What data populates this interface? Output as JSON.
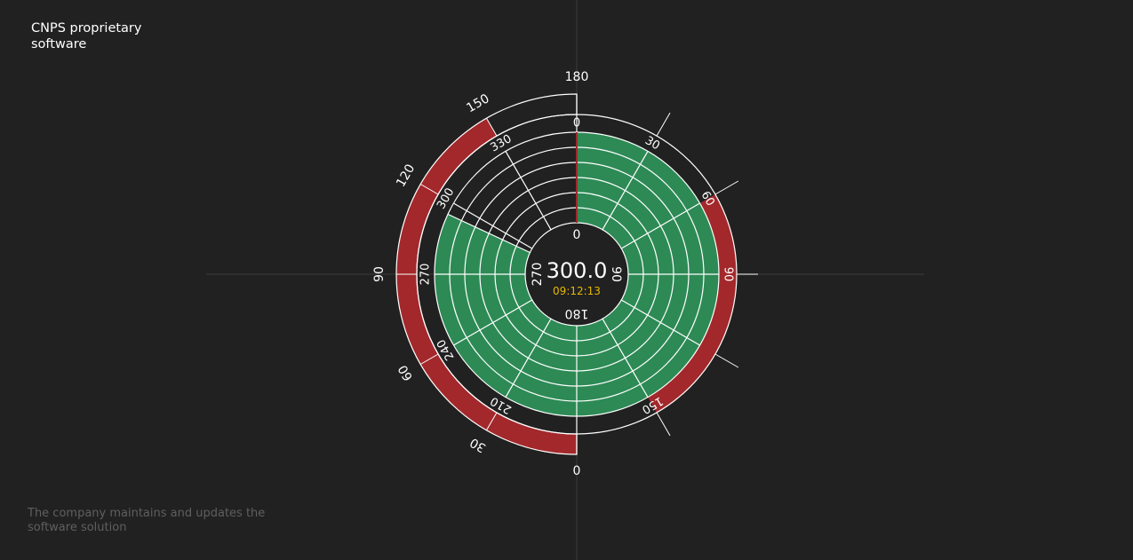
{
  "header": {
    "title": "CNPS proprietary software"
  },
  "footer": {
    "note": "The company maintains and updates the software solution"
  },
  "readout": {
    "value": "300.0",
    "time": "09:12:13"
  },
  "colors": {
    "background": "#212121",
    "green": "#2d8a55",
    "red": "#a3282b",
    "time": "#e6b800",
    "line": "#ffffff",
    "crosshair": "#3a3a3a"
  },
  "chart_data": {
    "type": "polar",
    "rings": 6,
    "green_sector_deg": [
      0,
      295
    ],
    "sector_spokes_every_deg": 30,
    "inner_labels": [
      "0",
      "90",
      "180",
      "270"
    ],
    "middle_ring": {
      "labels": [
        "0",
        "30",
        "60",
        "90",
        "150",
        "210",
        "240",
        "270",
        "300",
        "330"
      ],
      "red_band_deg": [
        60,
        150
      ]
    },
    "outer_gauge": {
      "range": [
        0,
        180
      ],
      "labels": [
        "0",
        "30",
        "60",
        "90",
        "120",
        "150",
        "180"
      ],
      "red_fill": [
        0,
        150
      ]
    }
  }
}
